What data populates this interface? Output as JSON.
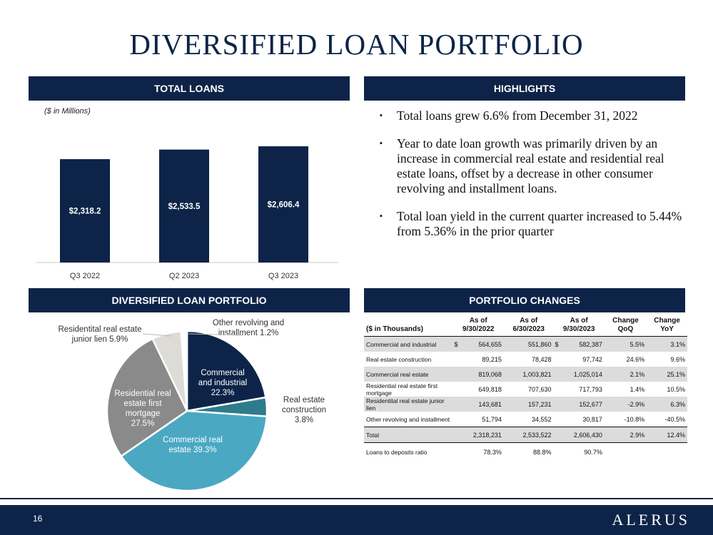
{
  "page": {
    "title": "DIVERSIFIED LOAN PORTFOLIO",
    "page_number": "16",
    "logo_text": "ALERUS"
  },
  "sections": {
    "total_loans": "TOTAL LOANS",
    "highlights": "HIGHLIGHTS",
    "diversified": "DIVERSIFIED LOAN PORTFOLIO",
    "portfolio_changes": "PORTFOLIO CHANGES"
  },
  "colors": {
    "navy": "#0d2448",
    "teal_dark": "#2e7b8c",
    "teal_light": "#4aa8c3",
    "gray_dark": "#8a8a8a",
    "gray_light": "#dcdbd6"
  },
  "highlights": [
    "Total loans grew 6.6% from December 31, 2022",
    "Year to date loan growth was primarily driven by an increase in commercial real estate and residential real estate loans, offset by a decrease in other consumer revolving and installment loans.",
    "Total loan yield in the current quarter increased to 5.44% from 5.36% in the prior quarter"
  ],
  "chart_data": [
    {
      "type": "bar",
      "subtitle": "($ in Millions)",
      "categories": [
        "Q3 2022",
        "Q2 2023",
        "Q3 2023"
      ],
      "values": [
        2318.2,
        2533.5,
        2606.4
      ],
      "labels": [
        "$2,318.2",
        "$2,533.5",
        "$2,606.4"
      ],
      "ylim": [
        0,
        2800
      ],
      "grid": false
    },
    {
      "type": "pie",
      "slices": [
        {
          "name": "Commercial and industrial",
          "value": 22.3,
          "label": "Commercial and industrial 22.3%",
          "color": "#0d2448"
        },
        {
          "name": "Real estate construction",
          "value": 3.8,
          "label": "Real estate construction 3.8%",
          "color": "#2e7b8c"
        },
        {
          "name": "Commercial real estate",
          "value": 39.3,
          "label": "Commercial real estate 39.3%",
          "color": "#4aa8c3"
        },
        {
          "name": "Residential real estate first mortgage",
          "value": 27.5,
          "label": "Residential real estate first mortgage 27.5%",
          "color": "#8a8a8a"
        },
        {
          "name": "Residentital real estate junior lien",
          "value": 5.9,
          "label": "Residentital real estate junior lien 5.9%",
          "color": "#dcdbd6"
        },
        {
          "name": "Other revolving and installment",
          "value": 1.2,
          "label": "Other revolving and installment 1.2%",
          "color": "#ffffff"
        }
      ]
    },
    {
      "type": "table",
      "headers": [
        "($ in Thousands)",
        "As of 9/30/2022",
        "As of 6/30/2023",
        "As of 9/30/2023",
        "Change QoQ",
        "Change YoY"
      ],
      "rows": [
        {
          "label": "Commercial and industrial",
          "c1": "564,655",
          "c2": "551,860",
          "c3": "582,387",
          "qoq": "5.5%",
          "yoy": "3.1%",
          "dollar": "$"
        },
        {
          "label": "Real estate construction",
          "c1": "89,215",
          "c2": "78,428",
          "c3": "97,742",
          "qoq": "24.6%",
          "yoy": "9.6%",
          "dollar": ""
        },
        {
          "label": "Commercial real estate",
          "c1": "819,068",
          "c2": "1,003,821",
          "c3": "1,025,014",
          "qoq": "2.1%",
          "yoy": "25.1%",
          "dollar": ""
        },
        {
          "label": "Residential real estate first mortgage",
          "c1": "649,818",
          "c2": "707,630",
          "c3": "717,793",
          "qoq": "1.4%",
          "yoy": "10.5%",
          "dollar": ""
        },
        {
          "label": "Residentital real estate junior lien",
          "c1": "143,681",
          "c2": "157,231",
          "c3": "152,677",
          "qoq": "-2.9%",
          "yoy": "6.3%",
          "dollar": ""
        },
        {
          "label": "Other revolving and installment",
          "c1": "51,794",
          "c2": "34,552",
          "c3": "30,817",
          "qoq": "-10.8%",
          "yoy": "-40.5%",
          "dollar": ""
        }
      ],
      "total": {
        "label": "Total",
        "c1": "2,318,231",
        "c2": "2,533,522",
        "c3": "2,606,430",
        "qoq": "2.9%",
        "yoy": "12.4%"
      },
      "ratio": {
        "label": "Loans to deposits ratio",
        "c1": "78.3%",
        "c2": "88.8%",
        "c3": "90.7%"
      }
    }
  ]
}
